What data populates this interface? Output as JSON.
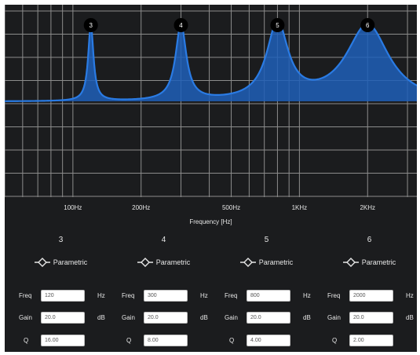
{
  "graph": {
    "x_axis_label": "Frequency [Hz]",
    "x_ticks": [
      {
        "label": "100Hz",
        "freq": 100
      },
      {
        "label": "200Hz",
        "freq": 200
      },
      {
        "label": "500Hz",
        "freq": 500
      },
      {
        "label": "1KHz",
        "freq": 1000
      },
      {
        "label": "2KHz",
        "freq": 2000
      }
    ],
    "freq_range": [
      50,
      3300
    ],
    "gain_range": [
      -40,
      40
    ],
    "line_color": "#2a7be4",
    "fill_color": "#1f5fb8",
    "marker_color": "#000000"
  },
  "bands": [
    {
      "number": "3",
      "filter_type": "Parametric",
      "freq_label": "Freq",
      "freq": "120",
      "freq_unit": "Hz",
      "gain_label": "Gain",
      "gain": "20.0",
      "gain_unit": "dB",
      "q_label": "Q",
      "q": "16.00"
    },
    {
      "number": "4",
      "filter_type": "Parametric",
      "freq_label": "Freq",
      "freq": "300",
      "freq_unit": "Hz",
      "gain_label": "Gain",
      "gain": "20.0",
      "gain_unit": "dB",
      "q_label": "Q",
      "q": "8.00"
    },
    {
      "number": "5",
      "filter_type": "Parametric",
      "freq_label": "Freq",
      "freq": "800",
      "freq_unit": "Hz",
      "gain_label": "Gain",
      "gain": "20.0",
      "gain_unit": "dB",
      "q_label": "Q",
      "q": "4.00"
    },
    {
      "number": "6",
      "filter_type": "Parametric",
      "freq_label": "Freq",
      "freq": "2000",
      "freq_unit": "Hz",
      "gain_label": "Gain",
      "gain": "20.0",
      "gain_unit": "dB",
      "q_label": "Q",
      "q": "2.00"
    }
  ]
}
